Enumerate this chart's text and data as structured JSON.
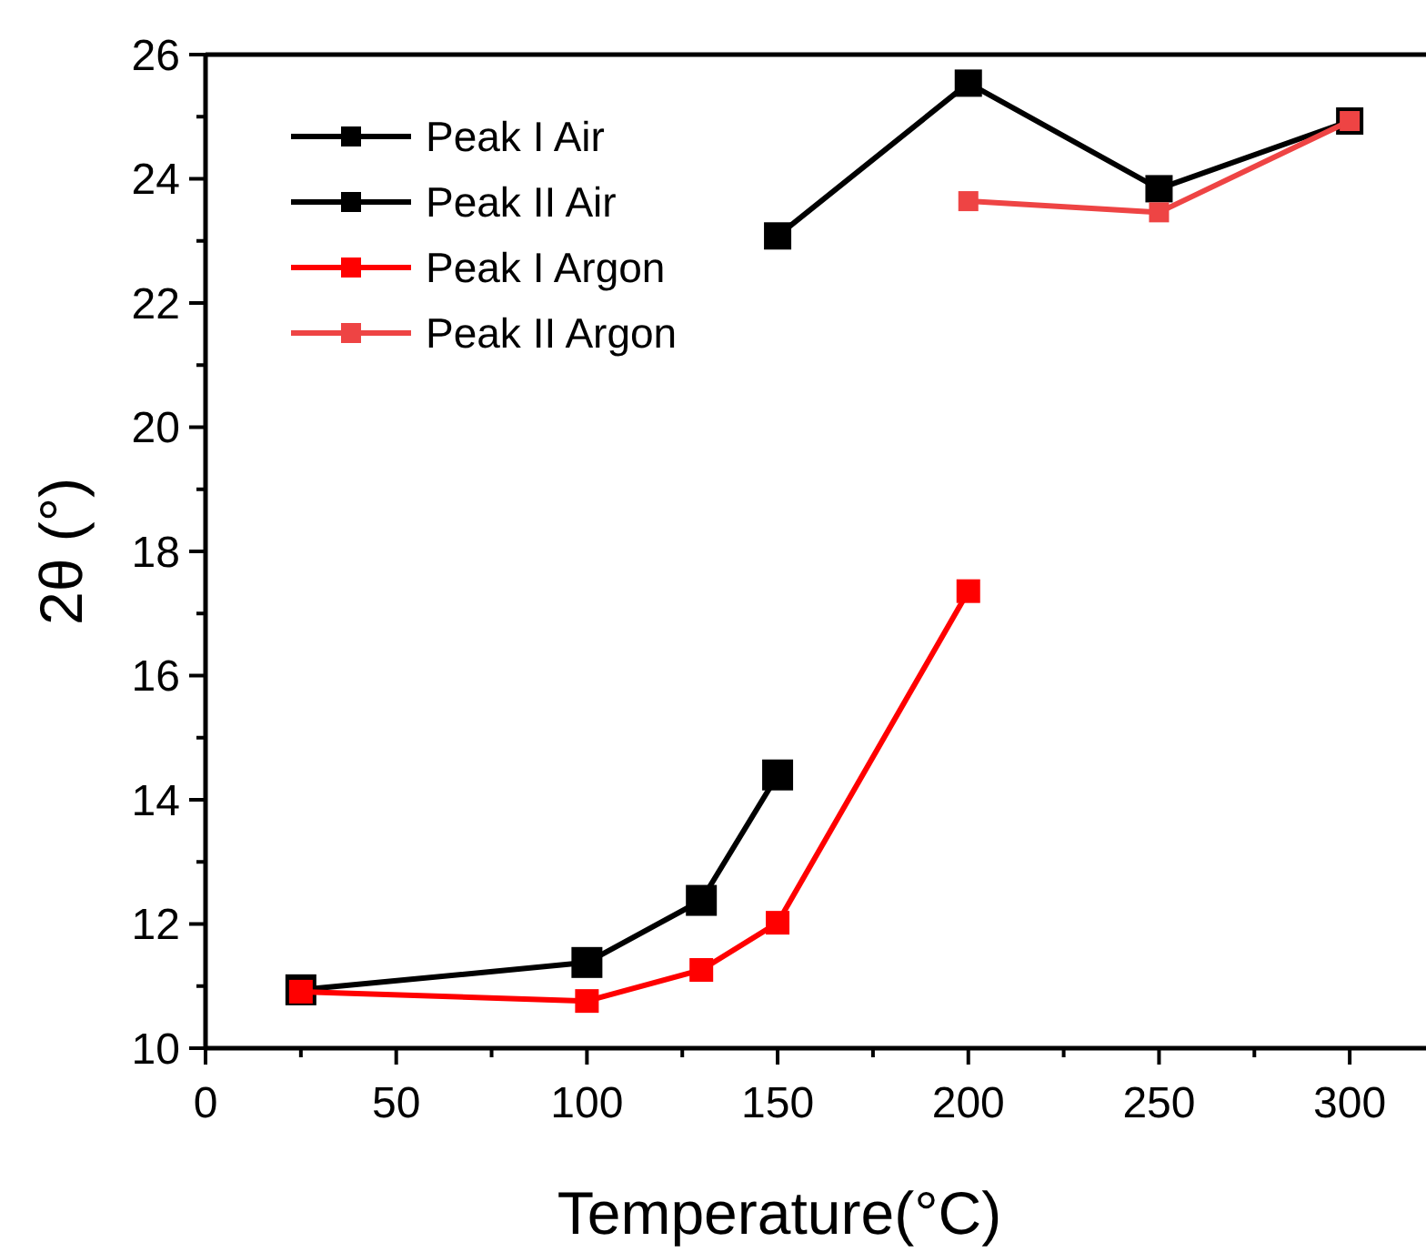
{
  "chart_data": {
    "type": "line",
    "xlabel": "Temperature(°C)",
    "ylabel": "2θ (°)",
    "xlim": [
      0,
      320
    ],
    "xticks": [
      0,
      50,
      100,
      150,
      200,
      250,
      300
    ],
    "ylim": [
      10,
      26
    ],
    "yticks": [
      10,
      12,
      14,
      16,
      18,
      20,
      22,
      24,
      26
    ],
    "grid": false,
    "legend": "top left",
    "marker": "square",
    "line_style": "solid",
    "series": [
      {
        "name": "Peak I Air",
        "color": "#000000",
        "x": [
          25,
          100,
          130,
          150
        ],
        "values": [
          10.94,
          11.38,
          12.38,
          14.4
        ]
      },
      {
        "name": "Peak II Air",
        "color": "#000000",
        "x": [
          150,
          200,
          250,
          300
        ],
        "values": [
          23.08,
          25.54,
          23.84,
          24.93
        ]
      },
      {
        "name": "Peak I Argon",
        "color": "#ff0000",
        "x": [
          25,
          100,
          130,
          150,
          200
        ],
        "values": [
          10.91,
          10.76,
          11.26,
          12.02,
          17.36
        ]
      },
      {
        "name": "Peak II Argon",
        "color": "#ee4444",
        "x": [
          200,
          250,
          300
        ],
        "values": [
          23.64,
          23.46,
          24.93
        ]
      }
    ]
  }
}
